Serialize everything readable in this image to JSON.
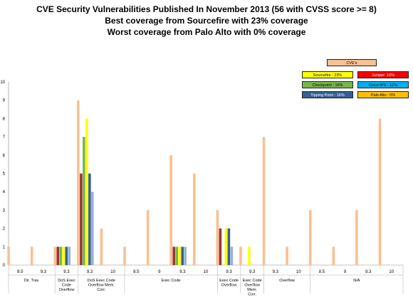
{
  "titles": [
    "CVE Security Vulnerabilities Published In November 2013 (56 with CVSS score >= 8)",
    "Best coverage from Sourcefire with 23% coverage",
    "Worst coverage from Palo Alto with 0% coverage"
  ],
  "legend": {
    "main": {
      "label": "CVE's",
      "color": "#FAC090"
    },
    "items": [
      {
        "label": "Sourcefire : 23%",
        "color": "#FFFF00"
      },
      {
        "label": "Juniper: 16%",
        "color": "#FF0000"
      },
      {
        "label": "Checkpoint : 16%",
        "color": "#77B74C"
      },
      {
        "label": "Cisco IPS : 12%",
        "color": "#00B0F0"
      },
      {
        "label": "Tipping Point : 16%",
        "color": "#366092"
      },
      {
        "label": "Palo Alto : 0%",
        "color": "#FFC000"
      }
    ]
  },
  "chart_data": {
    "type": "bar",
    "ylim": [
      0,
      10
    ],
    "y_ticks": [
      "0",
      "1",
      "2",
      "3",
      "4",
      "5",
      "6",
      "7",
      "8",
      "9",
      "10"
    ],
    "groups": [
      {
        "label": "Dir. Trav.",
        "categories": [
          "8.5",
          "9.3"
        ]
      },
      {
        "label": "DoS Exec Code Overflow",
        "categories": [
          "9.3"
        ]
      },
      {
        "label": "DoS Exec Code Overflow Mem. Corr.",
        "categories": [
          "9.3",
          "10"
        ]
      },
      {
        "label": "Exec Code",
        "categories": [
          "8.5",
          "9",
          "9.3",
          "10"
        ]
      },
      {
        "label": "Exec Code Overflow",
        "categories": [
          "9.3"
        ]
      },
      {
        "label": "Exec Code Overflow Mem. Corr.",
        "categories": [
          "9.3"
        ]
      },
      {
        "label": "Overflow",
        "categories": [
          "9.3",
          "10"
        ]
      },
      {
        "label": "N/A",
        "categories": [
          "8.5",
          "9",
          "9.3",
          "10"
        ]
      }
    ],
    "series_colors": [
      "#FAC090",
      "#953735",
      "#77B74C",
      "#FFFF00",
      "#366092",
      "#95B3D7"
    ],
    "series": [
      {
        "name": "CVE's",
        "values": [
          1,
          1,
          1,
          9,
          2,
          1,
          3,
          6,
          5,
          3,
          1,
          7,
          1,
          3,
          1,
          3,
          8
        ]
      },
      {
        "values": [
          0,
          0,
          1,
          5,
          0,
          0,
          0,
          1,
          0,
          2,
          0,
          0,
          0,
          0,
          0,
          0,
          0
        ]
      },
      {
        "values": [
          0,
          0,
          1,
          7,
          0,
          0,
          0,
          1,
          0,
          0,
          0,
          0,
          0,
          0,
          0,
          0,
          0
        ]
      },
      {
        "values": [
          0,
          0,
          1,
          8,
          0,
          0,
          0,
          1,
          0,
          2,
          1,
          0,
          0,
          0,
          0,
          0,
          0
        ]
      },
      {
        "values": [
          0,
          0,
          1,
          5,
          0,
          0,
          0,
          1,
          0,
          2,
          0,
          0,
          0,
          0,
          0,
          0,
          0
        ]
      },
      {
        "values": [
          0,
          0,
          1,
          4,
          0,
          0,
          0,
          1,
          0,
          1,
          0,
          0,
          0,
          0,
          0,
          0,
          0
        ]
      }
    ]
  }
}
